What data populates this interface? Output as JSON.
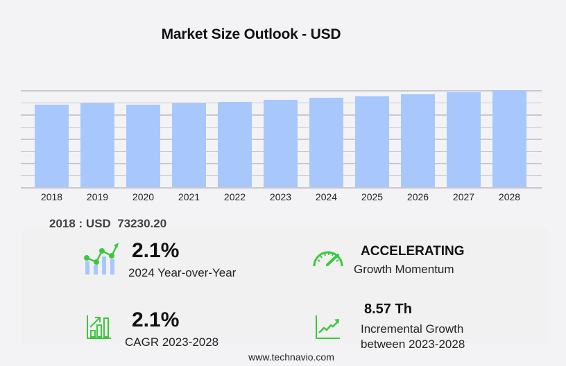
{
  "title": "Market Size Outlook  - USD",
  "chart_data": {
    "type": "bar",
    "title": "Market Size Outlook - USD",
    "xlabel": "",
    "ylabel": "",
    "categories": [
      "2018",
      "2019",
      "2020",
      "2021",
      "2022",
      "2023",
      "2024",
      "2025",
      "2026",
      "2027",
      "2028"
    ],
    "values": [
      73230.2,
      74460,
      73200,
      74500,
      75800,
      77400,
      79030,
      80690,
      82380,
      84110,
      85970
    ],
    "ylim": [
      0,
      86000
    ],
    "grid": true,
    "legend": null,
    "bar_color": "#a8c8fd",
    "gridline_count": 8
  },
  "base_value": {
    "text": "2018 : USD  73230.20"
  },
  "stats": {
    "yoy": {
      "value": "2.1%",
      "label": "2024 Year-over-Year",
      "icon": "growth-chart-icon"
    },
    "momentum": {
      "value": "ACCELERATING",
      "label": "Growth Momentum",
      "icon": "speedometer-icon"
    },
    "cagr": {
      "value": "2.1%",
      "label": "CAGR 2023-2028",
      "icon": "bar-chart-up-icon"
    },
    "incremental": {
      "value": "8.57 Th",
      "label_line1": "Incremental Growth",
      "label_line2": "between 2023-2028",
      "icon": "trend-line-icon"
    }
  },
  "footer": "www.technavio.com",
  "colors": {
    "bar": "#a8c8fd",
    "accent_green": "#3cc83c",
    "background": "#f3f3f5"
  }
}
